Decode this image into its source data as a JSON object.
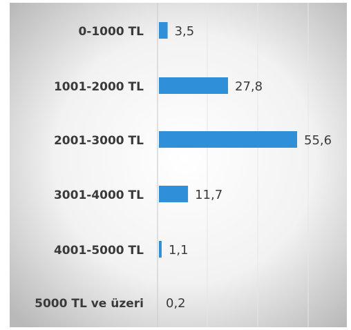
{
  "chart_data": {
    "type": "bar",
    "orientation": "horizontal",
    "categories": [
      "0-1000 TL",
      "1001-2000 TL",
      "2001-3000 TL",
      "3001-4000 TL",
      "4001-5000 TL",
      "5000 TL ve üzeri"
    ],
    "values": [
      3.5,
      27.8,
      55.6,
      11.7,
      1.1,
      0.2
    ],
    "value_labels": [
      "3,5",
      "27,8",
      "55,6",
      "11,7",
      "1,1",
      "0,2"
    ],
    "xlim": [
      0,
      55.6
    ],
    "grid": true,
    "legend": "none",
    "colors": {
      "bar": "#2f8fd9",
      "label": "#3a3a3a",
      "grid": "#e6e6e6",
      "axis": "#cfcfcf",
      "bg_center": "#ffffff",
      "bg_edge": "#b9b9b9"
    }
  }
}
